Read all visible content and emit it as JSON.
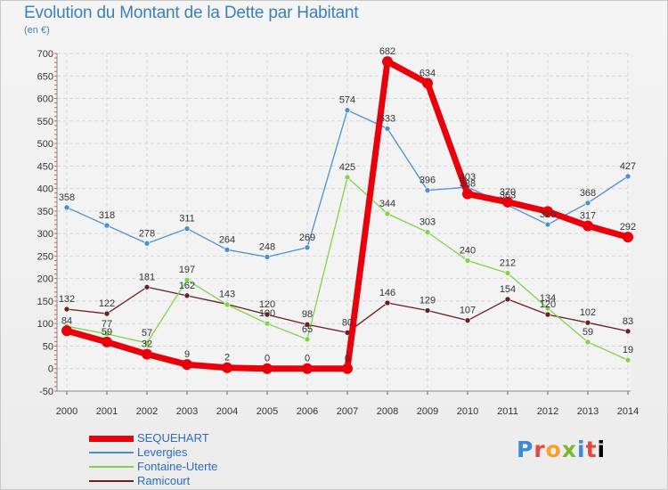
{
  "header": {
    "title": "Evolution du Montant de la Dette par Habitant",
    "subtitle": "(en €)"
  },
  "logo": {
    "text": "Proxiti"
  },
  "chart_data": {
    "type": "line",
    "title": "Evolution du Montant de la Dette par Habitant",
    "subtitle": "(en €)",
    "xlabel": "",
    "ylabel": "",
    "x": [
      "2000",
      "2001",
      "2002",
      "2003",
      "2004",
      "2005",
      "2006",
      "2007",
      "2008",
      "2009",
      "2010",
      "2011",
      "2012",
      "2013",
      "2014"
    ],
    "ylim": [
      -50,
      700
    ],
    "yticks": [
      -50,
      0,
      50,
      100,
      150,
      200,
      250,
      300,
      350,
      400,
      450,
      500,
      550,
      600,
      650,
      700
    ],
    "grid": true,
    "legend_position": "bottom-left",
    "series": [
      {
        "name": "SEQUEHART",
        "color": "#e8000b",
        "values": [
          84,
          59,
          32,
          9,
          2,
          0,
          0,
          0,
          682,
          634,
          388,
          370,
          349,
          317,
          292
        ]
      },
      {
        "name": "Levergies",
        "color": "#4a90d0",
        "values": [
          358,
          318,
          278,
          311,
          264,
          248,
          269,
          574,
          533,
          396,
          403,
          363,
          320,
          368,
          427
        ]
      },
      {
        "name": "Fontaine-Uterte",
        "color": "#7fd34a",
        "values": [
          94,
          77,
          57,
          197,
          142,
          100,
          65,
          425,
          344,
          303,
          240,
          212,
          134,
          59,
          19
        ]
      },
      {
        "name": "Ramicourt",
        "color": "#6b1f1f",
        "values": [
          132,
          122,
          181,
          162,
          143,
          120,
          98,
          80,
          146,
          129,
          107,
          154,
          120,
          102,
          83
        ]
      }
    ],
    "labels": {
      "SEQUEHART": [
        "84",
        "59",
        "32",
        "9",
        "2",
        "0",
        "0",
        "0",
        "682",
        "634",
        "388",
        "370",
        "",
        "317",
        "292"
      ],
      "Levergies": [
        "358",
        "318",
        "278",
        "311",
        "264",
        "248",
        "269",
        "574",
        "533",
        "396",
        "403",
        "363",
        "320",
        "368",
        "427"
      ],
      "Fontaine-Uterte": [
        "",
        "77",
        "57",
        "197",
        "",
        "100",
        "65",
        "425",
        "344",
        "303",
        "240",
        "212",
        "134",
        "59",
        "19"
      ],
      "Ramicourt": [
        "132",
        "122",
        "181",
        "162",
        "143",
        "120",
        "98",
        "80",
        "146",
        "129",
        "107",
        "154",
        "120",
        "102",
        "83"
      ]
    }
  }
}
